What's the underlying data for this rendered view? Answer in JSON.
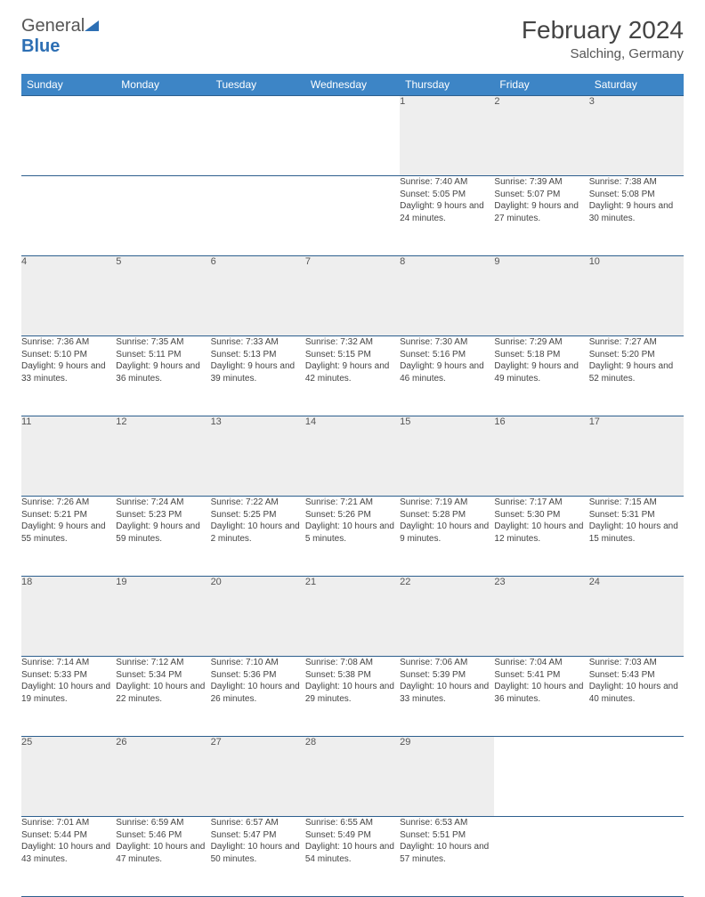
{
  "logo": {
    "general": "General",
    "blue": "Blue"
  },
  "header": {
    "month_title": "February 2024",
    "location": "Salching, Germany"
  },
  "colors": {
    "header_bg": "#3d85c6",
    "header_text": "#ffffff",
    "daynum_bg": "#eeeeee",
    "border": "#2d5f8e",
    "logo_blue": "#2d6fb4",
    "text": "#444444"
  },
  "weekdays": [
    "Sunday",
    "Monday",
    "Tuesday",
    "Wednesday",
    "Thursday",
    "Friday",
    "Saturday"
  ],
  "weeks": [
    [
      null,
      null,
      null,
      null,
      {
        "n": "1",
        "sr": "Sunrise: 7:40 AM",
        "ss": "Sunset: 5:05 PM",
        "dl": "Daylight: 9 hours and 24 minutes."
      },
      {
        "n": "2",
        "sr": "Sunrise: 7:39 AM",
        "ss": "Sunset: 5:07 PM",
        "dl": "Daylight: 9 hours and 27 minutes."
      },
      {
        "n": "3",
        "sr": "Sunrise: 7:38 AM",
        "ss": "Sunset: 5:08 PM",
        "dl": "Daylight: 9 hours and 30 minutes."
      }
    ],
    [
      {
        "n": "4",
        "sr": "Sunrise: 7:36 AM",
        "ss": "Sunset: 5:10 PM",
        "dl": "Daylight: 9 hours and 33 minutes."
      },
      {
        "n": "5",
        "sr": "Sunrise: 7:35 AM",
        "ss": "Sunset: 5:11 PM",
        "dl": "Daylight: 9 hours and 36 minutes."
      },
      {
        "n": "6",
        "sr": "Sunrise: 7:33 AM",
        "ss": "Sunset: 5:13 PM",
        "dl": "Daylight: 9 hours and 39 minutes."
      },
      {
        "n": "7",
        "sr": "Sunrise: 7:32 AM",
        "ss": "Sunset: 5:15 PM",
        "dl": "Daylight: 9 hours and 42 minutes."
      },
      {
        "n": "8",
        "sr": "Sunrise: 7:30 AM",
        "ss": "Sunset: 5:16 PM",
        "dl": "Daylight: 9 hours and 46 minutes."
      },
      {
        "n": "9",
        "sr": "Sunrise: 7:29 AM",
        "ss": "Sunset: 5:18 PM",
        "dl": "Daylight: 9 hours and 49 minutes."
      },
      {
        "n": "10",
        "sr": "Sunrise: 7:27 AM",
        "ss": "Sunset: 5:20 PM",
        "dl": "Daylight: 9 hours and 52 minutes."
      }
    ],
    [
      {
        "n": "11",
        "sr": "Sunrise: 7:26 AM",
        "ss": "Sunset: 5:21 PM",
        "dl": "Daylight: 9 hours and 55 minutes."
      },
      {
        "n": "12",
        "sr": "Sunrise: 7:24 AM",
        "ss": "Sunset: 5:23 PM",
        "dl": "Daylight: 9 hours and 59 minutes."
      },
      {
        "n": "13",
        "sr": "Sunrise: 7:22 AM",
        "ss": "Sunset: 5:25 PM",
        "dl": "Daylight: 10 hours and 2 minutes."
      },
      {
        "n": "14",
        "sr": "Sunrise: 7:21 AM",
        "ss": "Sunset: 5:26 PM",
        "dl": "Daylight: 10 hours and 5 minutes."
      },
      {
        "n": "15",
        "sr": "Sunrise: 7:19 AM",
        "ss": "Sunset: 5:28 PM",
        "dl": "Daylight: 10 hours and 9 minutes."
      },
      {
        "n": "16",
        "sr": "Sunrise: 7:17 AM",
        "ss": "Sunset: 5:30 PM",
        "dl": "Daylight: 10 hours and 12 minutes."
      },
      {
        "n": "17",
        "sr": "Sunrise: 7:15 AM",
        "ss": "Sunset: 5:31 PM",
        "dl": "Daylight: 10 hours and 15 minutes."
      }
    ],
    [
      {
        "n": "18",
        "sr": "Sunrise: 7:14 AM",
        "ss": "Sunset: 5:33 PM",
        "dl": "Daylight: 10 hours and 19 minutes."
      },
      {
        "n": "19",
        "sr": "Sunrise: 7:12 AM",
        "ss": "Sunset: 5:34 PM",
        "dl": "Daylight: 10 hours and 22 minutes."
      },
      {
        "n": "20",
        "sr": "Sunrise: 7:10 AM",
        "ss": "Sunset: 5:36 PM",
        "dl": "Daylight: 10 hours and 26 minutes."
      },
      {
        "n": "21",
        "sr": "Sunrise: 7:08 AM",
        "ss": "Sunset: 5:38 PM",
        "dl": "Daylight: 10 hours and 29 minutes."
      },
      {
        "n": "22",
        "sr": "Sunrise: 7:06 AM",
        "ss": "Sunset: 5:39 PM",
        "dl": "Daylight: 10 hours and 33 minutes."
      },
      {
        "n": "23",
        "sr": "Sunrise: 7:04 AM",
        "ss": "Sunset: 5:41 PM",
        "dl": "Daylight: 10 hours and 36 minutes."
      },
      {
        "n": "24",
        "sr": "Sunrise: 7:03 AM",
        "ss": "Sunset: 5:43 PM",
        "dl": "Daylight: 10 hours and 40 minutes."
      }
    ],
    [
      {
        "n": "25",
        "sr": "Sunrise: 7:01 AM",
        "ss": "Sunset: 5:44 PM",
        "dl": "Daylight: 10 hours and 43 minutes."
      },
      {
        "n": "26",
        "sr": "Sunrise: 6:59 AM",
        "ss": "Sunset: 5:46 PM",
        "dl": "Daylight: 10 hours and 47 minutes."
      },
      {
        "n": "27",
        "sr": "Sunrise: 6:57 AM",
        "ss": "Sunset: 5:47 PM",
        "dl": "Daylight: 10 hours and 50 minutes."
      },
      {
        "n": "28",
        "sr": "Sunrise: 6:55 AM",
        "ss": "Sunset: 5:49 PM",
        "dl": "Daylight: 10 hours and 54 minutes."
      },
      {
        "n": "29",
        "sr": "Sunrise: 6:53 AM",
        "ss": "Sunset: 5:51 PM",
        "dl": "Daylight: 10 hours and 57 minutes."
      },
      null,
      null
    ]
  ]
}
